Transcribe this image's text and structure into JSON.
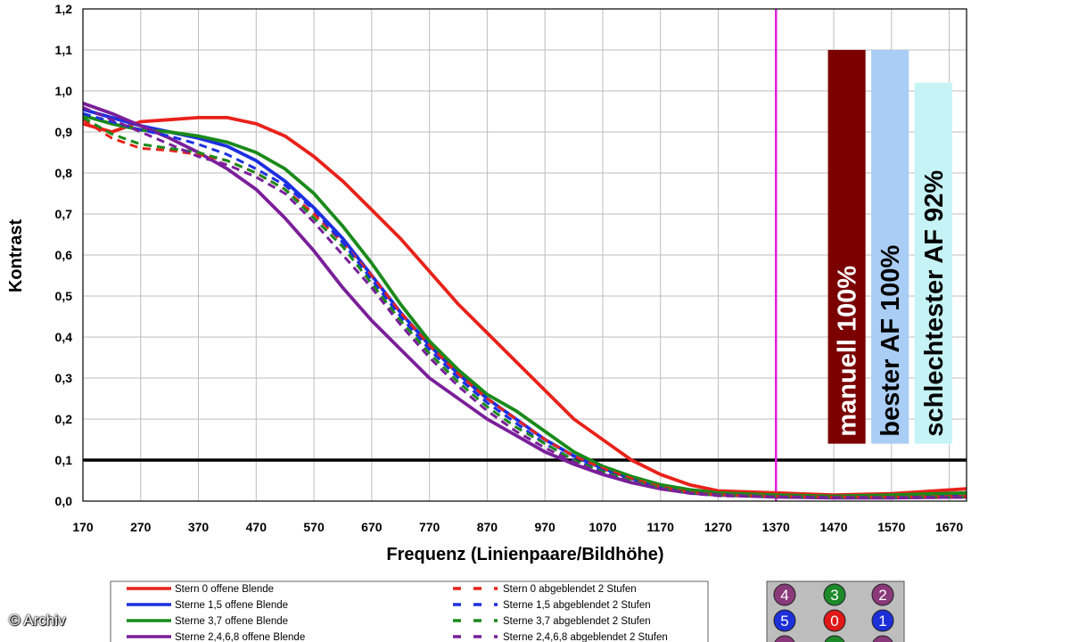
{
  "chart_data": {
    "type": "line",
    "ylabel": "Kontrast",
    "xlabel": "Frequenz (Linienpaare/Bildhöhe)",
    "xlim": [
      170,
      1700
    ],
    "ylim": [
      0,
      1.2
    ],
    "xticks": [
      "170",
      "270",
      "370",
      "470",
      "570",
      "670",
      "770",
      "870",
      "970",
      "1070",
      "1170",
      "1270",
      "1370",
      "1470",
      "1570",
      "1670"
    ],
    "yticks": [
      "0,0",
      "0,1",
      "0,2",
      "0,3",
      "0,4",
      "0,5",
      "0,6",
      "0,7",
      "0,8",
      "0,9",
      "1,0",
      "1,1",
      "1,2"
    ],
    "grid": true,
    "reference_lines": {
      "horizontal_y": 0.1,
      "vertical_x": 1370
    },
    "series": [
      {
        "name": "Stern 0 offene Blende",
        "color": "#e8221a",
        "dash": false,
        "x": [
          170,
          220,
          270,
          320,
          370,
          420,
          470,
          520,
          570,
          620,
          670,
          720,
          770,
          820,
          870,
          920,
          970,
          1020,
          1070,
          1120,
          1170,
          1220,
          1270,
          1370,
          1470,
          1570,
          1700
        ],
        "y": [
          0.92,
          0.9,
          0.925,
          0.93,
          0.935,
          0.935,
          0.92,
          0.89,
          0.84,
          0.78,
          0.71,
          0.64,
          0.56,
          0.48,
          0.41,
          0.34,
          0.27,
          0.2,
          0.15,
          0.1,
          0.065,
          0.04,
          0.025,
          0.02,
          0.015,
          0.018,
          0.03
        ]
      },
      {
        "name": "Sterne 1,5 offene Blende",
        "color": "#1c2fe0",
        "dash": false,
        "x": [
          170,
          220,
          270,
          320,
          370,
          420,
          470,
          520,
          570,
          620,
          670,
          720,
          770,
          820,
          870,
          920,
          970,
          1020,
          1070,
          1120,
          1170,
          1220,
          1270,
          1370,
          1470,
          1570,
          1700
        ],
        "y": [
          0.955,
          0.935,
          0.915,
          0.9,
          0.885,
          0.865,
          0.83,
          0.78,
          0.715,
          0.64,
          0.55,
          0.46,
          0.38,
          0.31,
          0.25,
          0.2,
          0.15,
          0.11,
          0.08,
          0.055,
          0.035,
          0.022,
          0.015,
          0.012,
          0.01,
          0.01,
          0.012
        ]
      },
      {
        "name": "Sterne 3,7 offene Blende",
        "color": "#1a8a1a",
        "dash": false,
        "x": [
          170,
          220,
          270,
          320,
          370,
          420,
          470,
          520,
          570,
          620,
          670,
          720,
          770,
          820,
          870,
          920,
          970,
          1020,
          1070,
          1120,
          1170,
          1220,
          1270,
          1370,
          1470,
          1570,
          1700
        ],
        "y": [
          0.94,
          0.92,
          0.905,
          0.9,
          0.89,
          0.875,
          0.85,
          0.81,
          0.75,
          0.67,
          0.58,
          0.48,
          0.39,
          0.32,
          0.26,
          0.22,
          0.17,
          0.12,
          0.085,
          0.06,
          0.04,
          0.028,
          0.02,
          0.015,
          0.012,
          0.015,
          0.02
        ]
      },
      {
        "name": "Sterne 2,4,6,8 offene Blende",
        "color": "#7a1f9a",
        "dash": false,
        "x": [
          170,
          220,
          270,
          320,
          370,
          420,
          470,
          520,
          570,
          620,
          670,
          720,
          770,
          820,
          870,
          920,
          970,
          1020,
          1070,
          1120,
          1170,
          1220,
          1270,
          1370,
          1470,
          1570,
          1700
        ],
        "y": [
          0.97,
          0.945,
          0.915,
          0.885,
          0.85,
          0.81,
          0.76,
          0.69,
          0.61,
          0.52,
          0.44,
          0.37,
          0.3,
          0.25,
          0.2,
          0.16,
          0.12,
          0.09,
          0.065,
          0.045,
          0.03,
          0.02,
          0.015,
          0.01,
          0.008,
          0.008,
          0.01
        ]
      },
      {
        "name": "Stern 0 abgeblendet 2 Stufen",
        "color": "#e8221a",
        "dash": true,
        "x": [
          170,
          220,
          270,
          320,
          370,
          420,
          470,
          520,
          570,
          620,
          670,
          720,
          770,
          820,
          870,
          920,
          970,
          1020,
          1070,
          1120,
          1170,
          1220,
          1270,
          1370,
          1470,
          1570,
          1700
        ],
        "y": [
          0.93,
          0.885,
          0.86,
          0.855,
          0.845,
          0.83,
          0.8,
          0.76,
          0.7,
          0.63,
          0.55,
          0.46,
          0.38,
          0.31,
          0.25,
          0.2,
          0.15,
          0.11,
          0.08,
          0.055,
          0.035,
          0.022,
          0.015,
          0.012,
          0.01,
          0.01,
          0.012
        ]
      },
      {
        "name": "Sterne 1,5 abgeblendet 2 Stufen",
        "color": "#1c2fe0",
        "dash": true,
        "x": [
          170,
          220,
          270,
          320,
          370,
          420,
          470,
          520,
          570,
          620,
          670,
          720,
          770,
          820,
          870,
          920,
          970,
          1020,
          1070,
          1120,
          1170,
          1220,
          1270,
          1370,
          1470,
          1570,
          1700
        ],
        "y": [
          0.945,
          0.925,
          0.905,
          0.89,
          0.87,
          0.845,
          0.81,
          0.77,
          0.71,
          0.63,
          0.54,
          0.45,
          0.37,
          0.3,
          0.24,
          0.19,
          0.14,
          0.1,
          0.075,
          0.05,
          0.032,
          0.02,
          0.014,
          0.011,
          0.009,
          0.009,
          0.01
        ]
      },
      {
        "name": "Sterne 3,7 abgeblendet 2 Stufen",
        "color": "#1a8a1a",
        "dash": true,
        "x": [
          170,
          220,
          270,
          320,
          370,
          420,
          470,
          520,
          570,
          620,
          670,
          720,
          770,
          820,
          870,
          920,
          970,
          1020,
          1070,
          1120,
          1170,
          1220,
          1270,
          1370,
          1470,
          1570,
          1700
        ],
        "y": [
          0.935,
          0.895,
          0.87,
          0.86,
          0.85,
          0.83,
          0.8,
          0.76,
          0.69,
          0.62,
          0.53,
          0.44,
          0.36,
          0.29,
          0.23,
          0.18,
          0.14,
          0.1,
          0.072,
          0.05,
          0.032,
          0.02,
          0.014,
          0.011,
          0.009,
          0.009,
          0.01
        ]
      },
      {
        "name": "Sterne 2,4,6,8 abgeblendet 2 Stufen",
        "color": "#7a1f9a",
        "dash": true,
        "x": [
          170,
          220,
          270,
          320,
          370,
          420,
          470,
          520,
          570,
          620,
          670,
          720,
          770,
          820,
          870,
          920,
          970,
          1020,
          1070,
          1120,
          1170,
          1220,
          1270,
          1370,
          1470,
          1570,
          1700
        ],
        "y": [
          0.96,
          0.93,
          0.9,
          0.87,
          0.84,
          0.82,
          0.79,
          0.75,
          0.68,
          0.6,
          0.52,
          0.43,
          0.35,
          0.28,
          0.22,
          0.17,
          0.13,
          0.095,
          0.068,
          0.047,
          0.03,
          0.019,
          0.013,
          0.01,
          0.008,
          0.008,
          0.009
        ]
      }
    ],
    "bars": [
      {
        "label": "manuell 100%",
        "value": 1.1,
        "fill": "#7b0000",
        "text_color": "#ffffff",
        "x_from": 1460,
        "x_to": 1525
      },
      {
        "label": "bester AF 100%",
        "value": 1.1,
        "fill": "#a9cdf5",
        "text_color": "#000000",
        "x_from": 1535,
        "x_to": 1600
      },
      {
        "label": "schlechtester AF 92%",
        "value": 1.02,
        "fill": "#c5f3f6",
        "text_color": "#000000",
        "x_from": 1610,
        "x_to": 1675
      }
    ]
  },
  "stars": [
    {
      "number": "4",
      "color": "#8a3a7a"
    },
    {
      "number": "3",
      "color": "#1d8a2a"
    },
    {
      "number": "2",
      "color": "#8a3a7a"
    },
    {
      "number": "5",
      "color": "#1c2fd8"
    },
    {
      "number": "0",
      "color": "#e01818"
    },
    {
      "number": "1",
      "color": "#1c2fd8"
    }
  ],
  "credit": "© Archiv"
}
